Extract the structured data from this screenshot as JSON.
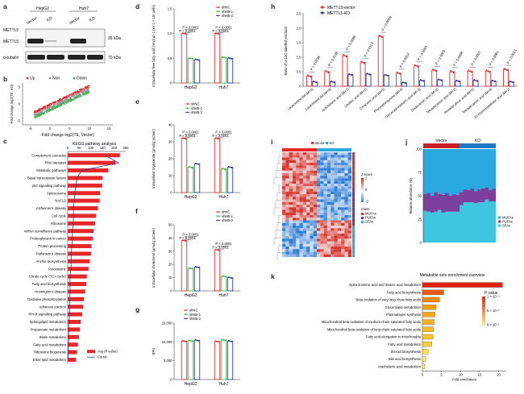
{
  "panels": {
    "a": {
      "letter": "a"
    },
    "b": {
      "letter": "b"
    },
    "c": {
      "letter": "c"
    },
    "d": {
      "letter": "d"
    },
    "e": {
      "letter": "e"
    },
    "f": {
      "letter": "f"
    },
    "g": {
      "letter": "g"
    },
    "h": {
      "letter": "h"
    },
    "i": {
      "letter": "i"
    },
    "j": {
      "letter": "j"
    },
    "k": {
      "letter": "k"
    }
  },
  "blot": {
    "cell_lines": [
      "HepG2",
      "Huh7"
    ],
    "lanes": [
      "Vector",
      "KO",
      "Vector",
      "KO"
    ],
    "rows": [
      "METTL5",
      "METTL5",
      "α-tubulin"
    ],
    "markers": [
      "35 kDa",
      "70 kDa"
    ]
  },
  "volcano": {
    "legend": [
      "Up",
      "Non",
      "Down"
    ],
    "colors": {
      "Up": "#e8272a",
      "Non": "#999999",
      "Down": "#3ab54a"
    },
    "xlabel": "Fold change log2(TE, Vector)",
    "ylabel": "Fold change log2(TE, KO)",
    "xticks": [
      "-5",
      "0",
      "5",
      "10",
      "15"
    ],
    "yticks": [
      "5",
      "0",
      "-5"
    ]
  },
  "kegg": {
    "title": "KEGG pathway analysis",
    "xticks": [
      "0",
      "50",
      "100",
      "150",
      "200",
      "250"
    ],
    "legend": [
      "-log (P value)",
      "Count"
    ],
    "pathways": [
      "Complement cascades",
      "RNA transport",
      "Metabolic pathways",
      "Basal transcription factors",
      "p53 signalling pathway",
      "Spliceosome",
      "NAFLD",
      "Alzheimer's disease",
      "Cell cycle",
      "Ribosome",
      "mRNA surveillance pathway",
      "Proteoglycans in cancer",
      "Protein processing",
      "Parkinson's disease",
      "Anchor biosynthesis",
      "Peroxisome",
      "Citrate cycle (TCA cycle)",
      "Fatty acid biosynthesis",
      "Huntington's disease",
      "Oxidative phosphorylation",
      "Adherens junction",
      "PPAR signalling pathway",
      "Sphingolipid metabolism",
      "Propanoate metabolism",
      "Biotin metabolism",
      "Fatty acid metabolism",
      "Ribosome biogenesis",
      "Ether lipid metabolism"
    ],
    "neglogp": [
      225,
      205,
      175,
      150,
      148,
      140,
      138,
      130,
      122,
      118,
      112,
      108,
      102,
      100,
      95,
      90,
      82,
      80,
      75,
      70,
      66,
      62,
      56,
      52,
      48,
      44,
      40,
      36
    ],
    "count": [
      160,
      220,
      60,
      40,
      35,
      30,
      28,
      25,
      25,
      24,
      20,
      20,
      18,
      15,
      15,
      14,
      10,
      10,
      10,
      9,
      8,
      8,
      6,
      5,
      5,
      4,
      3,
      2
    ]
  },
  "bar_legend": [
    "shNC",
    "shM5-1",
    "shM5-2"
  ],
  "bar_colors": [
    "#e8272a",
    "#3ab54a",
    "#2e3a9b"
  ],
  "d": {
    "ylabel": "Intracellular free fatty acid (nmol μl−1 per 1 × 10⁶ cells)",
    "yticks": [
      "0",
      "0.5",
      "1.0",
      "1.5"
    ],
    "ylim": [
      0,
      1.5
    ],
    "groups": [
      "HepG2",
      "Huh7"
    ],
    "values": [
      [
        1.0,
        0.5,
        0.47
      ],
      [
        1.0,
        0.52,
        0.5
      ]
    ],
    "pvals": [
      "P < 0.0001",
      "P < 0.0001",
      "P < 0.0001",
      "P < 0.0001"
    ]
  },
  "e": {
    "ylabel": "Intracellular triglyceride (μmol/g protein)",
    "yticks": [
      "0",
      "10",
      "20",
      "30",
      "40"
    ],
    "ylim": [
      0,
      40
    ],
    "groups": [
      "HepG2",
      "Huh7"
    ],
    "values": [
      [
        32,
        15,
        17
      ],
      [
        32,
        14,
        15
      ]
    ],
    "pvals": [
      "P < 0.0001",
      "P < 0.0001",
      "P < 0.0001",
      "P < 0.0001"
    ]
  },
  "f": {
    "ylabel": "Intracellular cholesterol (μmol/g protein)",
    "yticks": [
      "0",
      "10",
      "20",
      "30",
      "40",
      "50"
    ],
    "ylim": [
      0,
      50
    ],
    "groups": [
      "HepG2",
      "Huh7"
    ],
    "values": [
      [
        38,
        17,
        18
      ],
      [
        31,
        11,
        10
      ]
    ],
    "pvals": [
      "P < 0.0001",
      "P < 0.0001",
      "P < 0.0001",
      "P < 0.0001"
    ]
  },
  "g": {
    "ylabel": "RFU",
    "yticks": [
      "0",
      "5,000",
      "10,000",
      "15,000"
    ],
    "ylim": [
      0,
      15000
    ],
    "groups": [
      "HepG2",
      "Huh7"
    ],
    "values": [
      [
        10200,
        10300,
        10400
      ],
      [
        10100,
        10500,
        10200
      ]
    ]
  },
  "h": {
    "legend": [
      "METTL5-vector",
      "METTL5-KO"
    ],
    "colors": [
      "#e8272a",
      "#2e3a9b"
    ],
    "ylabel": "Ratio of U-13C-labelled products",
    "yticks": [
      "0",
      "0.5",
      "1.0",
      "1.5",
      "2.0",
      "2.5"
    ],
    "ylim": [
      0,
      2.5
    ],
    "categories": [
      "Leukotriene B4 (M+2)",
      "Leukotriene B4 (M+4)",
      "Arachidonic acid (M+2)",
      "Linoleic acid (M+2)",
      "Citraconic acid (M+5)",
      "Phytosphingosine (M+4)",
      "Glycerophosphoric acid (M+3)",
      "Dodecanoic acid (M+2)",
      "Tetradecanoic acid (M+2)",
      "Hexadecanoic acid (M+2)",
      "Tetradecanoic acid (M+4)",
      "16-Hydroxypalmitic acid (M+2)"
    ],
    "vector": [
      0.35,
      0.5,
      1.05,
      0.82,
      1.72,
      0.45,
      0.7,
      0.55,
      0.5,
      0.52,
      0.52,
      0.58
    ],
    "ko": [
      0.15,
      0.15,
      0.4,
      0.42,
      0.38,
      0.12,
      0.2,
      0.22,
      0.18,
      0.2,
      0.18,
      0.15
    ],
    "pvals": [
      "P = 0.0036",
      "P = 0.0128",
      "P = 0.0086",
      "P = 0.0113",
      "P = 0.0009",
      "P = 0.0012",
      "P = 0.0003",
      "P = 0.0003",
      "P = 0.0008",
      "P = 0.0007",
      "P = 0.0081",
      "P = 0.0021"
    ]
  },
  "heatmap": {
    "legend_top": [
      "Vector",
      "KO"
    ],
    "zscore_label": "Z score",
    "zticks": [
      "2",
      "0",
      "-2"
    ],
    "class_label": "Class",
    "classes": [
      "MUFAs",
      "PUFAs",
      "SFAs"
    ],
    "class_colors": [
      "#e8272a",
      "#8a2b8f",
      "#29a9e0"
    ]
  },
  "stacked": {
    "groups": [
      "Vector",
      "KO"
    ],
    "ylabel": "Relative abundance (%)",
    "yticks": [
      "0",
      "25",
      "50",
      "75",
      "100"
    ],
    "legend": [
      "MUFAs",
      "PUFAs",
      "SFAs"
    ],
    "colors": [
      "#29a9e0",
      "#7b3f9e",
      "#3ec6e0"
    ],
    "mufa": [
      48,
      47,
      50,
      46,
      48,
      49,
      47,
      50,
      48,
      49,
      46,
      43,
      44,
      42,
      45,
      43,
      42,
      41,
      44,
      42
    ],
    "pufa": [
      18,
      20,
      18,
      21,
      17,
      19,
      20,
      17,
      19,
      18,
      14,
      14,
      13,
      15,
      13,
      14,
      15,
      13,
      12,
      14
    ]
  },
  "enrich": {
    "title": "Metabolite sets enrichment overview",
    "xlabel": "Fold enrichment",
    "xticks": [
      "0",
      "5",
      "10",
      "15",
      "20"
    ],
    "xlim": [
      0,
      22
    ],
    "legend_title": "P value",
    "legend_ticks": [
      "1 × 10⁻⁶",
      "5 × 10⁻²",
      "8 × 10⁻²"
    ],
    "sets": [
      "Alpha linolenic acid and linoleic acid metabolism",
      "Fatty acid biosynthesis",
      "Beta oxidation of very long chain fatty acids",
      "Glycerolipid metabolism",
      "Plasmalogen synthesis",
      "Mitochondrial beta-oxidation of medium-chain saturated fatty acids",
      "Mitochondrial beta-oxidation of long-chain saturated fatty acids",
      "Fatty acid elongation in mitochondria",
      "Fatty acid metabolism",
      "Steroid biosynthesis",
      "Bile acid biosynthesis",
      "Arachidonic acid metabolism"
    ],
    "values": [
      21,
      5.6,
      4.5,
      3.6,
      3.3,
      3.1,
      2.9,
      2.8,
      2.5,
      1.5,
      0.9,
      0.6
    ],
    "colors": [
      "#e32112",
      "#e85a10",
      "#ee8a14",
      "#f0a018",
      "#f2aa1c",
      "#f4b220",
      "#f6bc26",
      "#f7c42c",
      "#f8cf38",
      "#fae04a",
      "#fbe860",
      "#fcef78"
    ]
  }
}
